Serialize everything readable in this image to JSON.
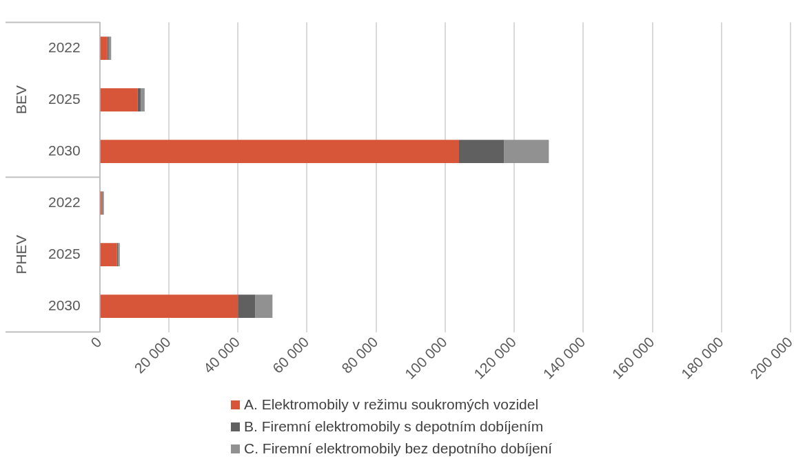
{
  "chart_data": {
    "type": "bar",
    "orientation": "horizontal",
    "stacked": true,
    "categories": [
      "2022",
      "2025",
      "2030",
      "2022",
      "2025",
      "2030"
    ],
    "annotations": [
      "BEV",
      "PHEV"
    ],
    "series": [
      {
        "name": "A. Elektromobily v režimu soukromých vozidel",
        "color": "#d75639",
        "values": [
          2200,
          11000,
          104000,
          600,
          5000,
          40000
        ]
      },
      {
        "name": "B. Firemní elektromobily s depotním dobíjením",
        "color": "#606060",
        "values": [
          400,
          900,
          13000,
          200,
          300,
          5000
        ]
      },
      {
        "name": "C. Firemní elektromobily bez depotního dobíjení",
        "color": "#919191",
        "values": [
          700,
          1100,
          13000,
          400,
          500,
          5000
        ]
      }
    ],
    "xlim": [
      0,
      200000
    ],
    "xticks": [
      0,
      {
        "value": 20000,
        "label": "20 000"
      },
      {
        "value": 40000,
        "label": "40 000"
      },
      {
        "value": 60000,
        "label": "60 000"
      },
      {
        "value": 80000,
        "label": "80 000"
      },
      {
        "value": 100000,
        "label": "100 000"
      },
      {
        "value": 120000,
        "label": "120 000"
      },
      {
        "value": 140000,
        "label": "140 000"
      },
      {
        "value": 160000,
        "label": "160 000"
      },
      {
        "value": 180000,
        "label": "180 000"
      },
      {
        "value": 200000,
        "label": "200 000"
      }
    ],
    "grid": "x",
    "legend": "bottom"
  }
}
